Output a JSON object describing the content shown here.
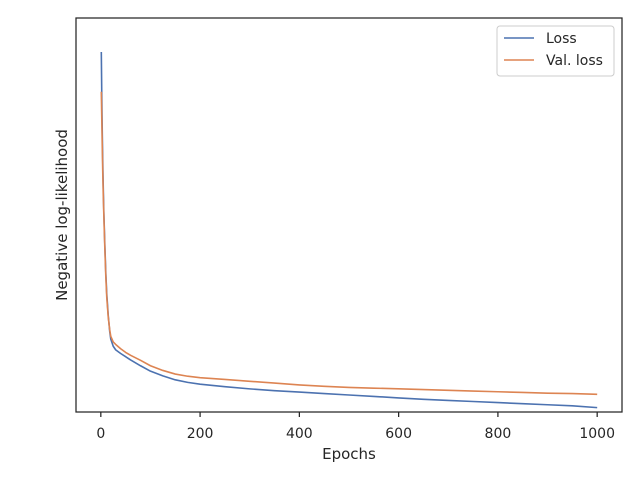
{
  "chart_data": {
    "type": "line",
    "title": "",
    "xlabel": "Epochs",
    "ylabel": "Negative log-likelihood",
    "xlim": [
      -50,
      1050
    ],
    "ylim": [
      0,
      1
    ],
    "y_ticks_labeled": false,
    "x_ticks": [
      0,
      200,
      400,
      600,
      800,
      1000
    ],
    "grid": false,
    "legend_position": "top-right",
    "series": [
      {
        "name": "Loss",
        "color": "#4c72b0",
        "x": [
          1,
          2,
          3,
          4,
          5,
          6,
          8,
          10,
          12,
          15,
          18,
          20,
          25,
          30,
          40,
          50,
          60,
          80,
          100,
          125,
          150,
          175,
          200,
          250,
          300,
          350,
          400,
          450,
          500,
          550,
          600,
          650,
          700,
          750,
          800,
          850,
          900,
          950,
          1000
        ],
        "y": [
          0.95,
          0.82,
          0.72,
          0.64,
          0.57,
          0.51,
          0.42,
          0.34,
          0.28,
          0.22,
          0.175,
          0.155,
          0.135,
          0.125,
          0.115,
          0.106,
          0.097,
          0.081,
          0.066,
          0.053,
          0.042,
          0.035,
          0.03,
          0.023,
          0.017,
          0.012,
          0.008,
          0.004,
          0.0,
          -0.004,
          -0.008,
          -0.012,
          -0.015,
          -0.018,
          -0.021,
          -0.024,
          -0.027,
          -0.03,
          -0.035
        ]
      },
      {
        "name": "Val. loss",
        "color": "#dd8452",
        "x": [
          1,
          2,
          3,
          4,
          5,
          6,
          8,
          10,
          12,
          15,
          18,
          20,
          25,
          30,
          40,
          50,
          60,
          80,
          100,
          125,
          150,
          175,
          200,
          250,
          300,
          350,
          400,
          450,
          500,
          550,
          600,
          650,
          700,
          750,
          800,
          850,
          900,
          950,
          1000
        ],
        "y": [
          0.84,
          0.76,
          0.68,
          0.61,
          0.55,
          0.5,
          0.41,
          0.33,
          0.27,
          0.215,
          0.18,
          0.163,
          0.147,
          0.14,
          0.128,
          0.118,
          0.11,
          0.096,
          0.081,
          0.068,
          0.058,
          0.052,
          0.048,
          0.043,
          0.038,
          0.033,
          0.028,
          0.024,
          0.021,
          0.019,
          0.017,
          0.015,
          0.013,
          0.011,
          0.009,
          0.007,
          0.005,
          0.004,
          0.002
        ]
      }
    ]
  }
}
